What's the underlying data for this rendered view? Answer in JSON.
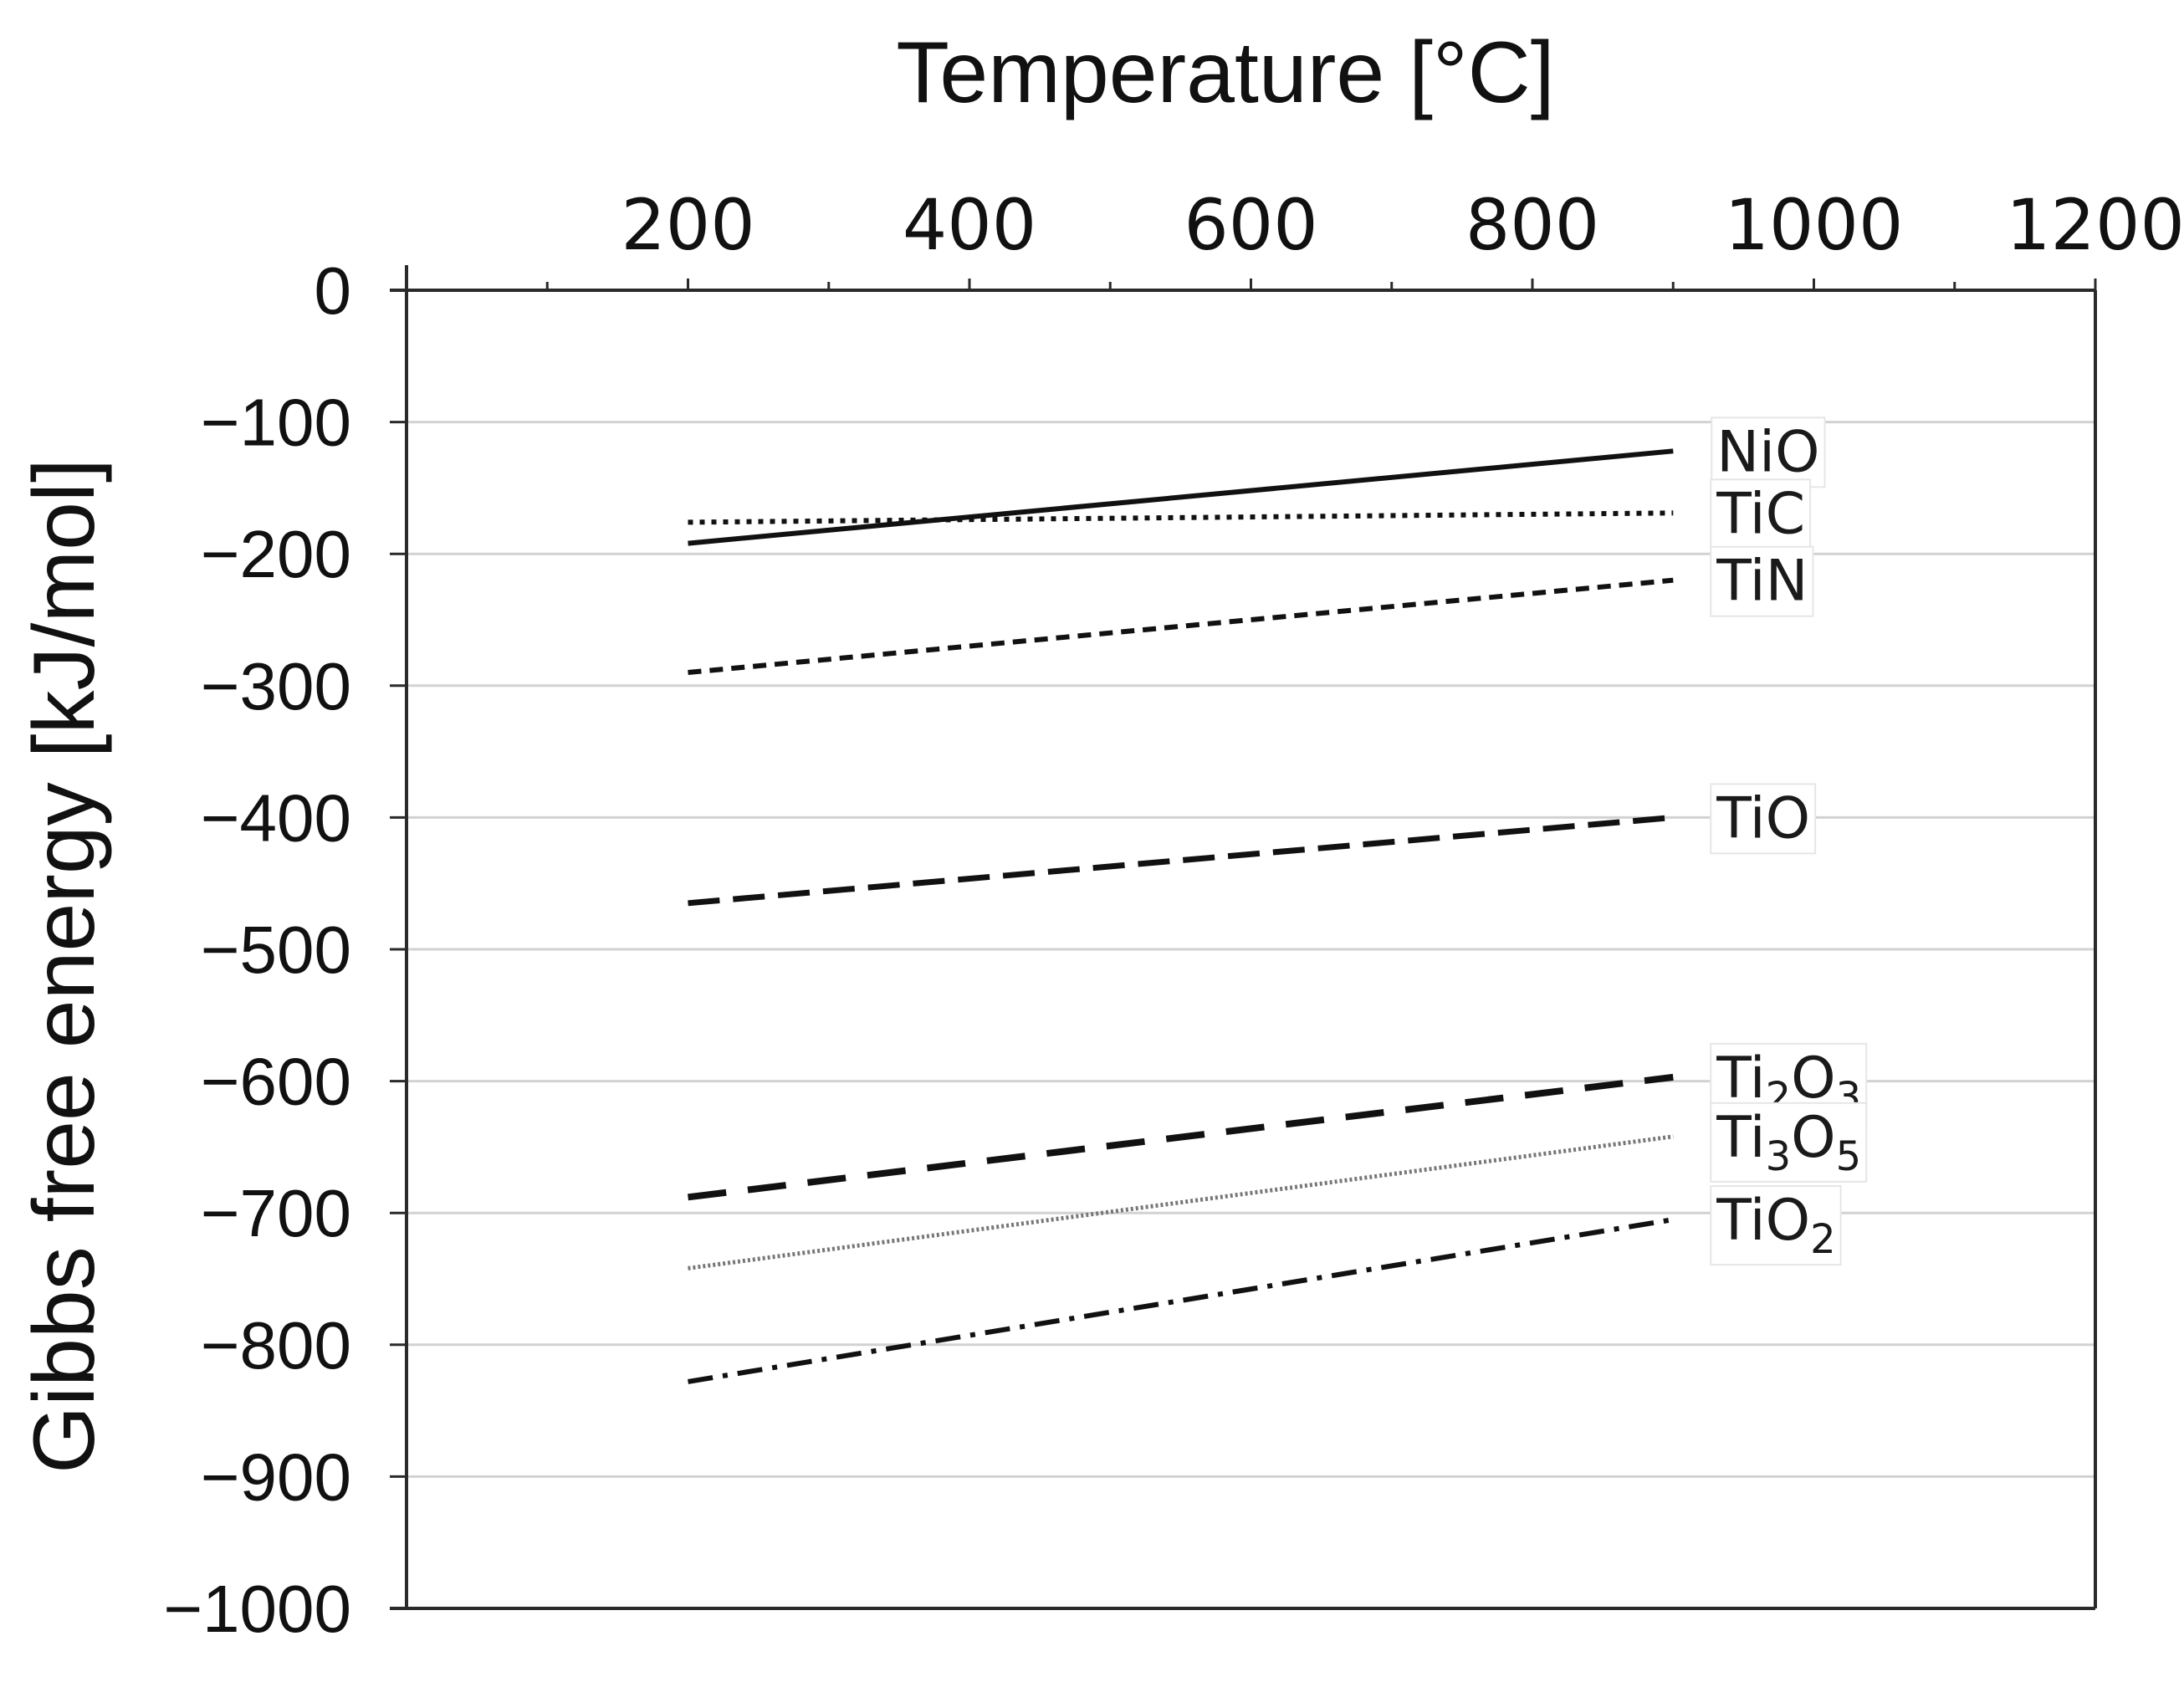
{
  "chart_data": {
    "type": "line",
    "title": "",
    "xlabel": "Temperature [°C]",
    "ylabel": "Gibbs free energy [kJ/mol]",
    "xlim": [
      0,
      1200
    ],
    "ylim": [
      -1000,
      0
    ],
    "x_ticks": [
      200,
      400,
      600,
      800,
      1000,
      1200
    ],
    "x_tick_labels": [
      "200",
      "400",
      "600",
      "800",
      "1000",
      "1200"
    ],
    "y_ticks": [
      0,
      -100,
      -200,
      -300,
      -400,
      -500,
      -600,
      -700,
      -800,
      -900,
      -1000
    ],
    "y_tick_labels": [
      "0",
      "−100",
      "−200",
      "−300",
      "−400",
      "−500",
      "−600",
      "−700",
      "−800",
      "−900",
      "−1000"
    ],
    "x_axis_position": "top",
    "grid": "horizontal",
    "series": [
      {
        "name": "NiO",
        "label_main": "NiO",
        "label_sub1": "",
        "label_mid": "",
        "label_sub2": "",
        "style": "solid",
        "color": "#111111",
        "x": [
          200,
          900
        ],
        "values": [
          -192,
          -122
        ]
      },
      {
        "name": "TiC",
        "label_main": "TiC",
        "label_sub1": "",
        "label_mid": "",
        "label_sub2": "",
        "style": "dotted",
        "color": "#111111",
        "x": [
          200,
          900
        ],
        "values": [
          -176,
          -169
        ]
      },
      {
        "name": "TiN",
        "label_main": "TiN",
        "label_sub1": "",
        "label_mid": "",
        "label_sub2": "",
        "style": "short-dash",
        "color": "#111111",
        "x": [
          200,
          900
        ],
        "values": [
          -290,
          -220
        ]
      },
      {
        "name": "TiO",
        "label_main": "TiO",
        "label_sub1": "",
        "label_mid": "",
        "label_sub2": "",
        "style": "long-dash",
        "color": "#111111",
        "x": [
          200,
          900
        ],
        "values": [
          -465,
          -400
        ]
      },
      {
        "name": "Ti2O3",
        "label_main": "Ti",
        "label_sub1": "2",
        "label_mid": "O",
        "label_sub2": "3",
        "style": "long-dash-wide",
        "color": "#111111",
        "x": [
          200,
          900
        ],
        "values": [
          -688,
          -597
        ]
      },
      {
        "name": "Ti3O5",
        "label_main": "Ti",
        "label_sub1": "3",
        "label_mid": "O",
        "label_sub2": "5",
        "style": "fine-dotted",
        "color": "#777777",
        "x": [
          200,
          900
        ],
        "values": [
          -742,
          -642
        ]
      },
      {
        "name": "TiO2",
        "label_main": "TiO",
        "label_sub1": "2",
        "label_mid": "",
        "label_sub2": "",
        "style": "dash-dot",
        "color": "#111111",
        "x": [
          200,
          900
        ],
        "values": [
          -828,
          -705
        ]
      }
    ]
  }
}
